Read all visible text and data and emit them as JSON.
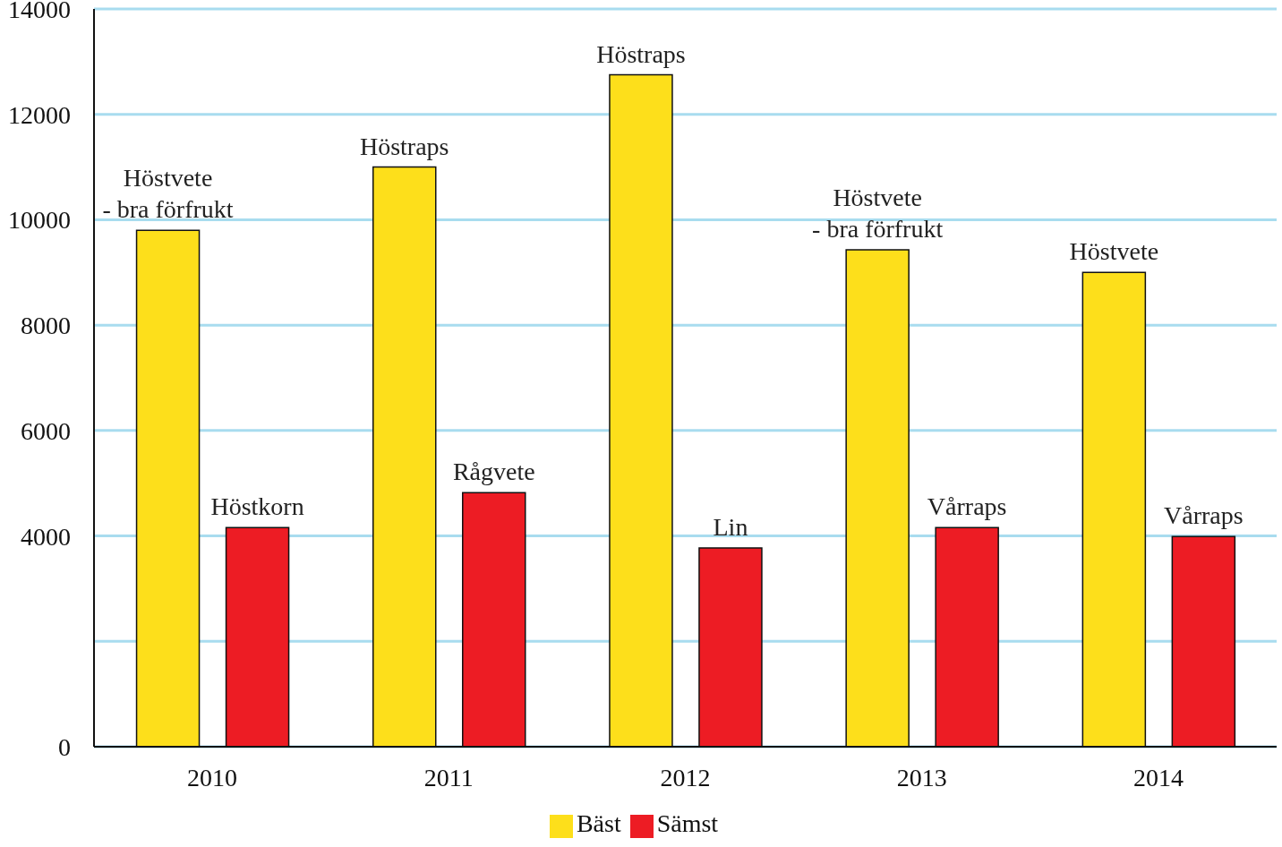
{
  "chart_data": {
    "type": "bar",
    "categories": [
      "2010",
      "2011",
      "2012",
      "2013",
      "2014"
    ],
    "series": [
      {
        "name": "Bäst",
        "color": "#fddf1b",
        "values": [
          9800,
          11000,
          12750,
          9430,
          9000
        ],
        "value_labels": [
          "Höstvete\n- bra förfrukt",
          "Höstraps",
          "Höstraps",
          "Höstvete\n- bra förfrukt",
          "Höstvete"
        ]
      },
      {
        "name": "Sämst",
        "color": "#ed1c24",
        "values": [
          4160,
          4820,
          3770,
          4160,
          3990
        ],
        "value_labels": [
          "Höstkorn",
          "Rågvete",
          "Lin",
          "Vårraps",
          "Vårraps"
        ]
      }
    ],
    "ylim": [
      0,
      14000
    ],
    "yticks": [
      0,
      {
        "value": 2000,
        "label": null
      },
      4000,
      6000,
      8000,
      10000,
      12000,
      14000
    ],
    "grid": "y",
    "legend": "bottom"
  }
}
